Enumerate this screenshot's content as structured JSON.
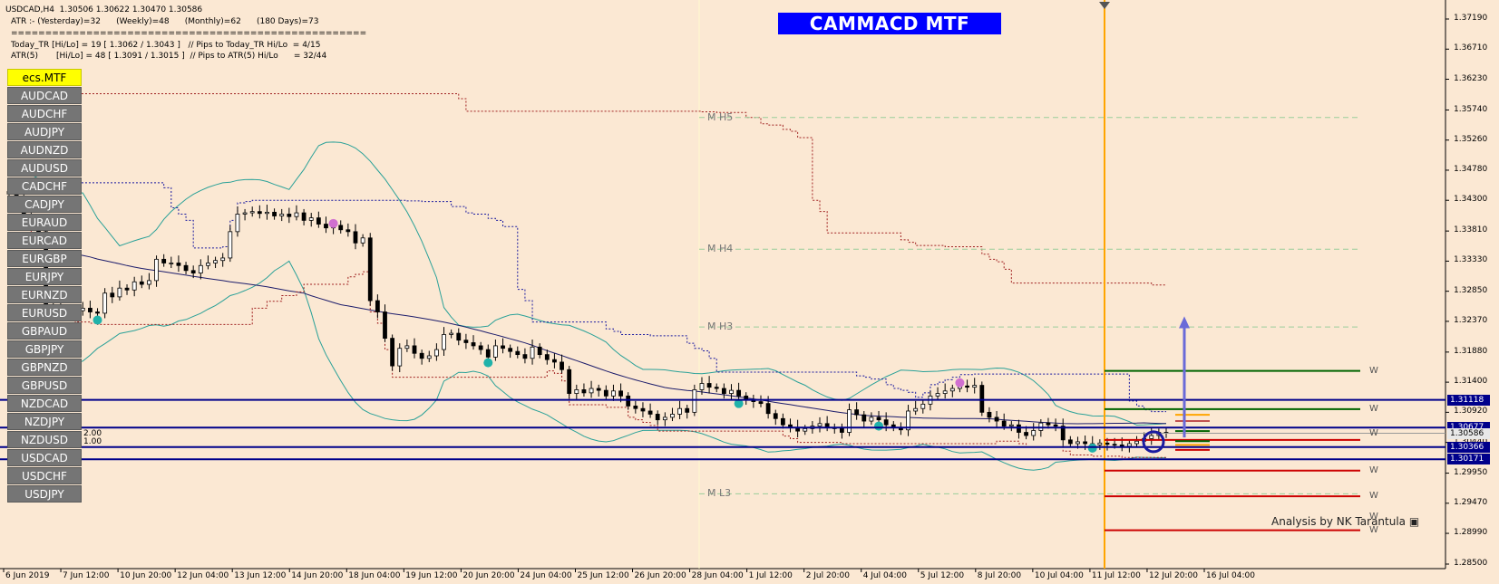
{
  "header": {
    "line1": "USDCAD,H4  1.30506 1.30622 1.30470 1.30586",
    "line2": "ATR :- (Yesterday)=32      (Weekly)=48      (Monthly)=62      (180 Days)=73",
    "line3": "====================================================",
    "line4": "Today_TR [Hi/Lo] = 19 [ 1.3062 / 1.3043 ]   // Pips to Today_TR Hi/Lo  = 4/15",
    "line5": "ATR(5)       [Hi/Lo] = 48 [ 1.3091 / 1.3015 ]  // Pips to ATR(5) Hi/Lo      = 32/44"
  },
  "title_banner": "CAMMACD MTF",
  "symbols": {
    "active": "ecs.MTF",
    "list": [
      "AUDCAD",
      "AUDCHF",
      "AUDJPY",
      "AUDNZD",
      "AUDUSD",
      "CADCHF",
      "CADJPY",
      "EURAUD",
      "EURCAD",
      "EURGBP",
      "EURJPY",
      "EURNZD",
      "EURUSD",
      "GBPAUD",
      "GBPJPY",
      "GBPNZD",
      "GBPUSD",
      "NZDCAD",
      "NZDJPY",
      "NZDUSD",
      "USDCAD",
      "USDCHF",
      "USDJPY"
    ]
  },
  "small_values": {
    "upper": "2.00",
    "lower": "1.00"
  },
  "credit": "Analysis by NK Tarantula",
  "colors": {
    "background": "#fbe8d3",
    "banner": "#0000ff",
    "bull": "#ffffff",
    "bear": "#000000",
    "level_line": "#00008b",
    "vline": "#ffa500",
    "green_level": "#006400",
    "red_level": "#cc0000"
  },
  "chart_data": {
    "type": "candlestick",
    "symbol": "USDCAD",
    "timeframe": "H4",
    "ylim": [
      1.285,
      1.3745
    ],
    "y_ticks": [
      "1.37190",
      "1.36710",
      "1.36230",
      "1.35740",
      "1.35260",
      "1.34780",
      "1.34300",
      "1.33810",
      "1.33330",
      "1.32850",
      "1.32370",
      "1.31880",
      "1.31400",
      "1.30920",
      "1.30440",
      "1.29950",
      "1.29470",
      "1.28990",
      "1.28500"
    ],
    "x_ticks": [
      "6 Jun 2019",
      "7 Jun 12:00",
      "10 Jun 20:00",
      "12 Jun 04:00",
      "13 Jun 12:00",
      "14 Jun 20:00",
      "18 Jun 04:00",
      "19 Jun 12:00",
      "20 Jun 20:00",
      "24 Jun 04:00",
      "25 Jun 12:00",
      "26 Jun 20:00",
      "28 Jun 04:00",
      "1 Jul 12:00",
      "2 Jul 20:00",
      "4 Jul 04:00",
      "5 Jul 12:00",
      "8 Jul 20:00",
      "10 Jul 04:00",
      "11 Jul 12:00",
      "12 Jul 20:00",
      "16 Jul 04:00"
    ],
    "close_path": [
      1.344,
      1.3432,
      1.34,
      1.339,
      1.338,
      1.326,
      1.3262,
      1.3258,
      1.3256,
      1.3254,
      1.3258,
      1.3252,
      1.325,
      1.3282,
      1.3276,
      1.329,
      1.3287,
      1.33,
      1.3296,
      1.3302,
      1.3336,
      1.333,
      1.333,
      1.3326,
      1.3318,
      1.3314,
      1.3326,
      1.333,
      1.3334,
      1.3338,
      1.338,
      1.3408,
      1.341,
      1.3412,
      1.3409,
      1.3411,
      1.3405,
      1.3408,
      1.3404,
      1.341,
      1.3398,
      1.3402,
      1.3392,
      1.3386,
      1.339,
      1.3383,
      1.338,
      1.3362,
      1.337,
      1.327,
      1.3252,
      1.321,
      1.3166,
      1.3194,
      1.3198,
      1.3186,
      1.3178,
      1.3182,
      1.3192,
      1.3216,
      1.3218,
      1.3207,
      1.3203,
      1.3198,
      1.3192,
      1.318,
      1.3198,
      1.3194,
      1.3189,
      1.3184,
      1.3178,
      1.3196,
      1.3184,
      1.3176,
      1.3172,
      1.316,
      1.3122,
      1.3128,
      1.3123,
      1.313,
      1.3127,
      1.3118,
      1.3126,
      1.3118,
      1.3102,
      1.3098,
      1.3094,
      1.3089,
      1.308,
      1.3084,
      1.3089,
      1.3098,
      1.3092,
      1.3128,
      1.3138,
      1.3132,
      1.313,
      1.3122,
      1.3127,
      1.3118,
      1.3112,
      1.3109,
      1.3106,
      1.309,
      1.3082,
      1.3072,
      1.3068,
      1.3062,
      1.3066,
      1.307,
      1.3074,
      1.3068,
      1.3066,
      1.306,
      1.3096,
      1.3088,
      1.3078,
      1.3084,
      1.308,
      1.3072,
      1.3068,
      1.3064,
      1.3094,
      1.3098,
      1.3105,
      1.3118,
      1.3122,
      1.3126,
      1.313,
      1.3134,
      1.3132,
      1.3135,
      1.3092,
      1.3084,
      1.3078,
      1.307,
      1.3072,
      1.306,
      1.3055,
      1.3063,
      1.3075,
      1.3072,
      1.307,
      1.3048,
      1.3042,
      1.3045,
      1.3042,
      1.304,
      1.3043,
      1.3041,
      1.304,
      1.3038,
      1.3042,
      1.3046,
      1.305,
      1.3055,
      1.306,
      1.3059
    ],
    "levels": [
      {
        "label": "1.31118",
        "price": 1.31118
      },
      {
        "label": "1.30677",
        "price": 1.30677
      },
      {
        "label": "1.30586",
        "price": 1.30586
      },
      {
        "label": "1.30366",
        "price": 1.30366
      },
      {
        "label": "1.30171",
        "price": 1.30171
      }
    ],
    "projection_lines": [
      {
        "color": "green",
        "price": 1.3158
      },
      {
        "color": "green",
        "price": 1.3097
      },
      {
        "color": "red",
        "price": 1.3048
      },
      {
        "color": "red",
        "price": 1.2999
      },
      {
        "color": "red",
        "price": 1.2958
      },
      {
        "color": "red",
        "price": 1.2904
      }
    ],
    "murrey_labels": [
      {
        "label": "M  H5",
        "price": 1.3562
      },
      {
        "label": "M  H4",
        "price": 1.3352
      },
      {
        "label": "M  H3",
        "price": 1.3228
      },
      {
        "label": "M  L3",
        "price": 1.2962
      }
    ],
    "w_labels": [
      "W",
      "W",
      "W",
      "W",
      "W",
      "W",
      "W"
    ]
  }
}
